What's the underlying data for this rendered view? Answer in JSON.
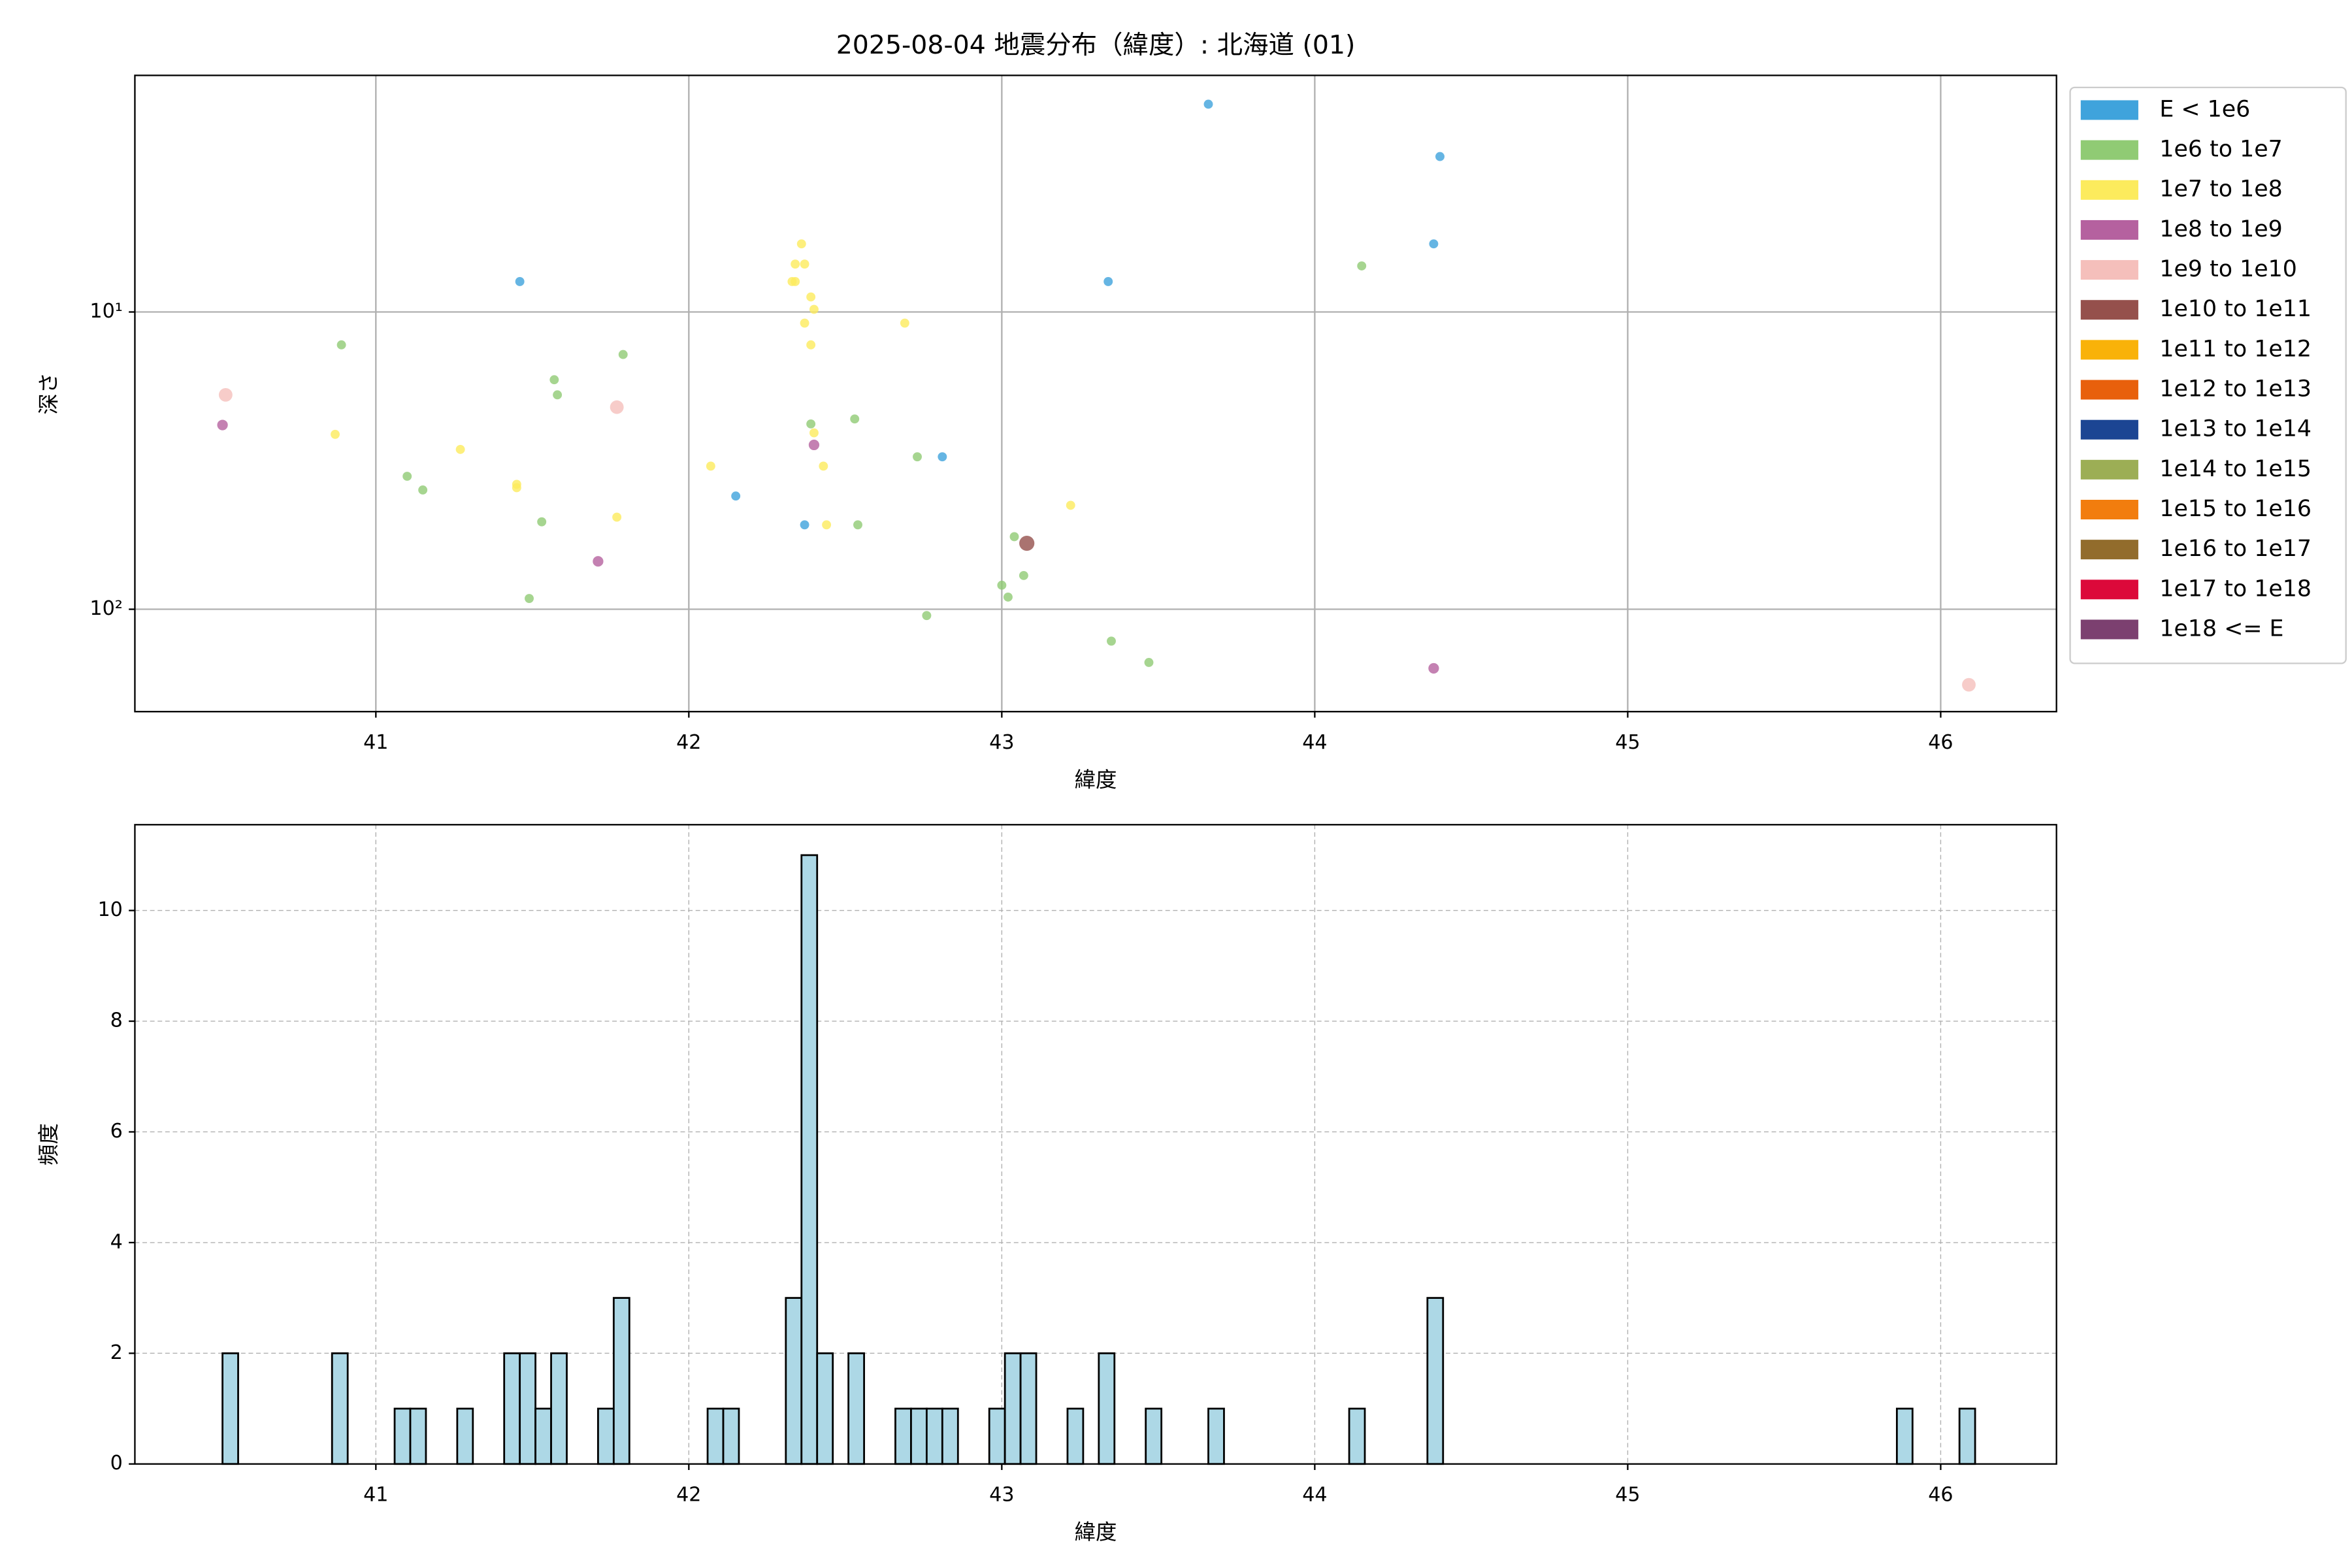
{
  "chart_data": [
    {
      "type": "scatter",
      "title": "2025-08-04 地震分布（緯度）: 北海道 (01)",
      "x_label": "緯度",
      "y_label": "深さ",
      "xlim": [
        40.23,
        46.37
      ],
      "xticks": [
        41,
        42,
        43,
        44,
        45,
        46
      ],
      "ylim": [
        221,
        1.6
      ],
      "yscale": "log",
      "yticks": [
        {
          "value": 10,
          "label": "10¹"
        },
        {
          "value": 100,
          "label": "10²"
        }
      ],
      "grid": true,
      "legend": "outside upper right",
      "series": [
        {
          "name": "E < 1e6",
          "color": "#3fa3dc",
          "marker_size": 3,
          "x": [
            43.66,
            44.4,
            44.38,
            41.46,
            43.34,
            42.81,
            42.15,
            42.37
          ],
          "values": [
            2.0,
            3.0,
            5.9,
            7.9,
            7.9,
            30.7,
            41.6,
            52
          ]
        },
        {
          "name": "1e6 to 1e7",
          "color": "#90cb74",
          "marker_size": 3,
          "x": [
            44.15,
            40.89,
            41.79,
            41.57,
            41.58,
            42.53,
            42.39,
            42.73,
            41.1,
            41.15,
            41.53,
            42.54,
            43.04,
            43.07,
            43.0,
            43.02,
            41.49,
            42.76,
            43.35,
            43.47
          ],
          "values": [
            7.0,
            12.9,
            13.9,
            16.9,
            19.0,
            22.9,
            23.8,
            30.7,
            35.7,
            39.7,
            50.8,
            52,
            57,
            77,
            83,
            91,
            92,
            105,
            128,
            151
          ]
        },
        {
          "name": "1e7 to 1e8",
          "color": "#fceb5d",
          "marker_size": 3,
          "x": [
            42.36,
            42.34,
            42.37,
            42.33,
            42.34,
            42.39,
            42.4,
            42.37,
            42.69,
            42.39,
            40.87,
            41.27,
            42.4,
            42.07,
            41.45,
            41.45,
            42.43,
            41.77,
            42.44,
            43.22
          ],
          "values": [
            5.9,
            6.9,
            6.9,
            7.9,
            7.9,
            8.9,
            9.8,
            10.9,
            10.9,
            12.9,
            25.8,
            29.0,
            25.5,
            33,
            38,
            39,
            33,
            49,
            52,
            44.7
          ]
        },
        {
          "name": "1e8 to 1e9",
          "color": "#b5619f",
          "marker_size": 3.5,
          "x": [
            40.51,
            42.4,
            41.71,
            44.38
          ],
          "values": [
            24,
            28,
            69,
            158
          ]
        },
        {
          "name": "1e9 to 1e10",
          "color": "#f5bfbb",
          "marker_size": 4.5,
          "x": [
            40.52,
            41.77,
            46.09
          ],
          "values": [
            19,
            20.9,
            179.5
          ]
        },
        {
          "name": "1e10 to 1e11",
          "color": "#95504c",
          "marker_size": 5,
          "x": [
            43.08
          ],
          "values": [
            60
          ]
        },
        {
          "name": "1e11 to 1e12",
          "color": "#f9b209",
          "marker_size": 5,
          "x": [],
          "values": []
        },
        {
          "name": "1e12 to 1e13",
          "color": "#e8600c",
          "marker_size": 5,
          "x": [],
          "values": []
        },
        {
          "name": "1e13 to 1e14",
          "color": "#1c4593",
          "marker_size": 5,
          "x": [],
          "values": []
        },
        {
          "name": "1e14 to 1e15",
          "color": "#9cae55",
          "marker_size": 5,
          "x": [],
          "values": []
        },
        {
          "name": "1e15 to 1e16",
          "color": "#f27d0e",
          "marker_size": 5,
          "x": [],
          "values": []
        },
        {
          "name": "1e16 to 1e17",
          "color": "#926c2c",
          "marker_size": 5,
          "x": [],
          "values": []
        },
        {
          "name": "1e17 to 1e18",
          "color": "#dc093a",
          "marker_size": 5,
          "x": [],
          "values": []
        },
        {
          "name": "1e18 <= E",
          "color": "#7c4070",
          "marker_size": 5,
          "x": [],
          "values": []
        }
      ]
    },
    {
      "type": "histogram",
      "x_label": "緯度",
      "y_label": "頻度",
      "color": "#add8e6",
      "xlim": [
        40.23,
        46.37
      ],
      "xticks": [
        41,
        42,
        43,
        44,
        45,
        46
      ],
      "ylim": [
        0,
        11.55
      ],
      "yticks": [
        0,
        2,
        4,
        6,
        8,
        10
      ],
      "grid": true,
      "bins": [
        40.51,
        40.56,
        40.61,
        40.66,
        40.71,
        40.76,
        40.81,
        40.86,
        40.91,
        40.96,
        41.01,
        41.06,
        41.11,
        41.16,
        41.21,
        41.26,
        41.31,
        41.36,
        41.41,
        41.46,
        41.51,
        41.56,
        41.61,
        41.66,
        41.71,
        41.76,
        41.81,
        41.86,
        41.91,
        41.96,
        42.01,
        42.06,
        42.11,
        42.16,
        42.21,
        42.26,
        42.31,
        42.36,
        42.41,
        42.46,
        42.51,
        42.56,
        42.61,
        42.66,
        42.71,
        42.76,
        42.81,
        42.86,
        42.91,
        42.96,
        43.01,
        43.06,
        43.11,
        43.16,
        43.21,
        43.26,
        43.31,
        43.36,
        43.41,
        43.46,
        43.51,
        43.56,
        43.61,
        43.66,
        43.71,
        43.76,
        43.81,
        43.86,
        43.91,
        43.96,
        44.01,
        44.06,
        44.11,
        44.16,
        44.21,
        44.26,
        44.31,
        44.36,
        44.41,
        44.46,
        44.51,
        44.56,
        44.61,
        44.66,
        44.71,
        44.76,
        44.81,
        44.86,
        44.91,
        44.96,
        45.01,
        45.06,
        45.11,
        45.16,
        45.21,
        45.26,
        45.31,
        45.36,
        45.41,
        45.46,
        45.51,
        45.56,
        45.61,
        45.66,
        45.71,
        45.76,
        45.81,
        45.86,
        45.91,
        45.96,
        46.01,
        46.06,
        46.11
      ],
      "values": [
        2,
        0,
        0,
        0,
        0,
        0,
        0,
        2,
        0,
        0,
        0,
        1,
        1,
        0,
        0,
        1,
        0,
        0,
        2,
        2,
        1,
        2,
        0,
        0,
        1,
        3,
        0,
        0,
        0,
        0,
        0,
        1,
        1,
        0,
        0,
        0,
        3,
        11,
        2,
        0,
        2,
        0,
        0,
        1,
        1,
        1,
        1,
        0,
        0,
        1,
        2,
        2,
        0,
        0,
        1,
        0,
        2,
        0,
        0,
        1,
        0,
        0,
        0,
        1,
        0,
        0,
        0,
        0,
        0,
        0,
        0,
        0,
        1,
        0,
        0,
        0,
        0,
        3,
        0,
        0,
        0,
        0,
        0,
        0,
        0,
        0,
        0,
        0,
        0,
        0,
        0,
        0,
        0,
        0,
        0,
        0,
        0,
        0,
        0,
        0,
        0,
        0,
        0,
        0,
        0,
        0,
        0,
        1,
        0,
        0,
        0,
        1
      ]
    }
  ]
}
